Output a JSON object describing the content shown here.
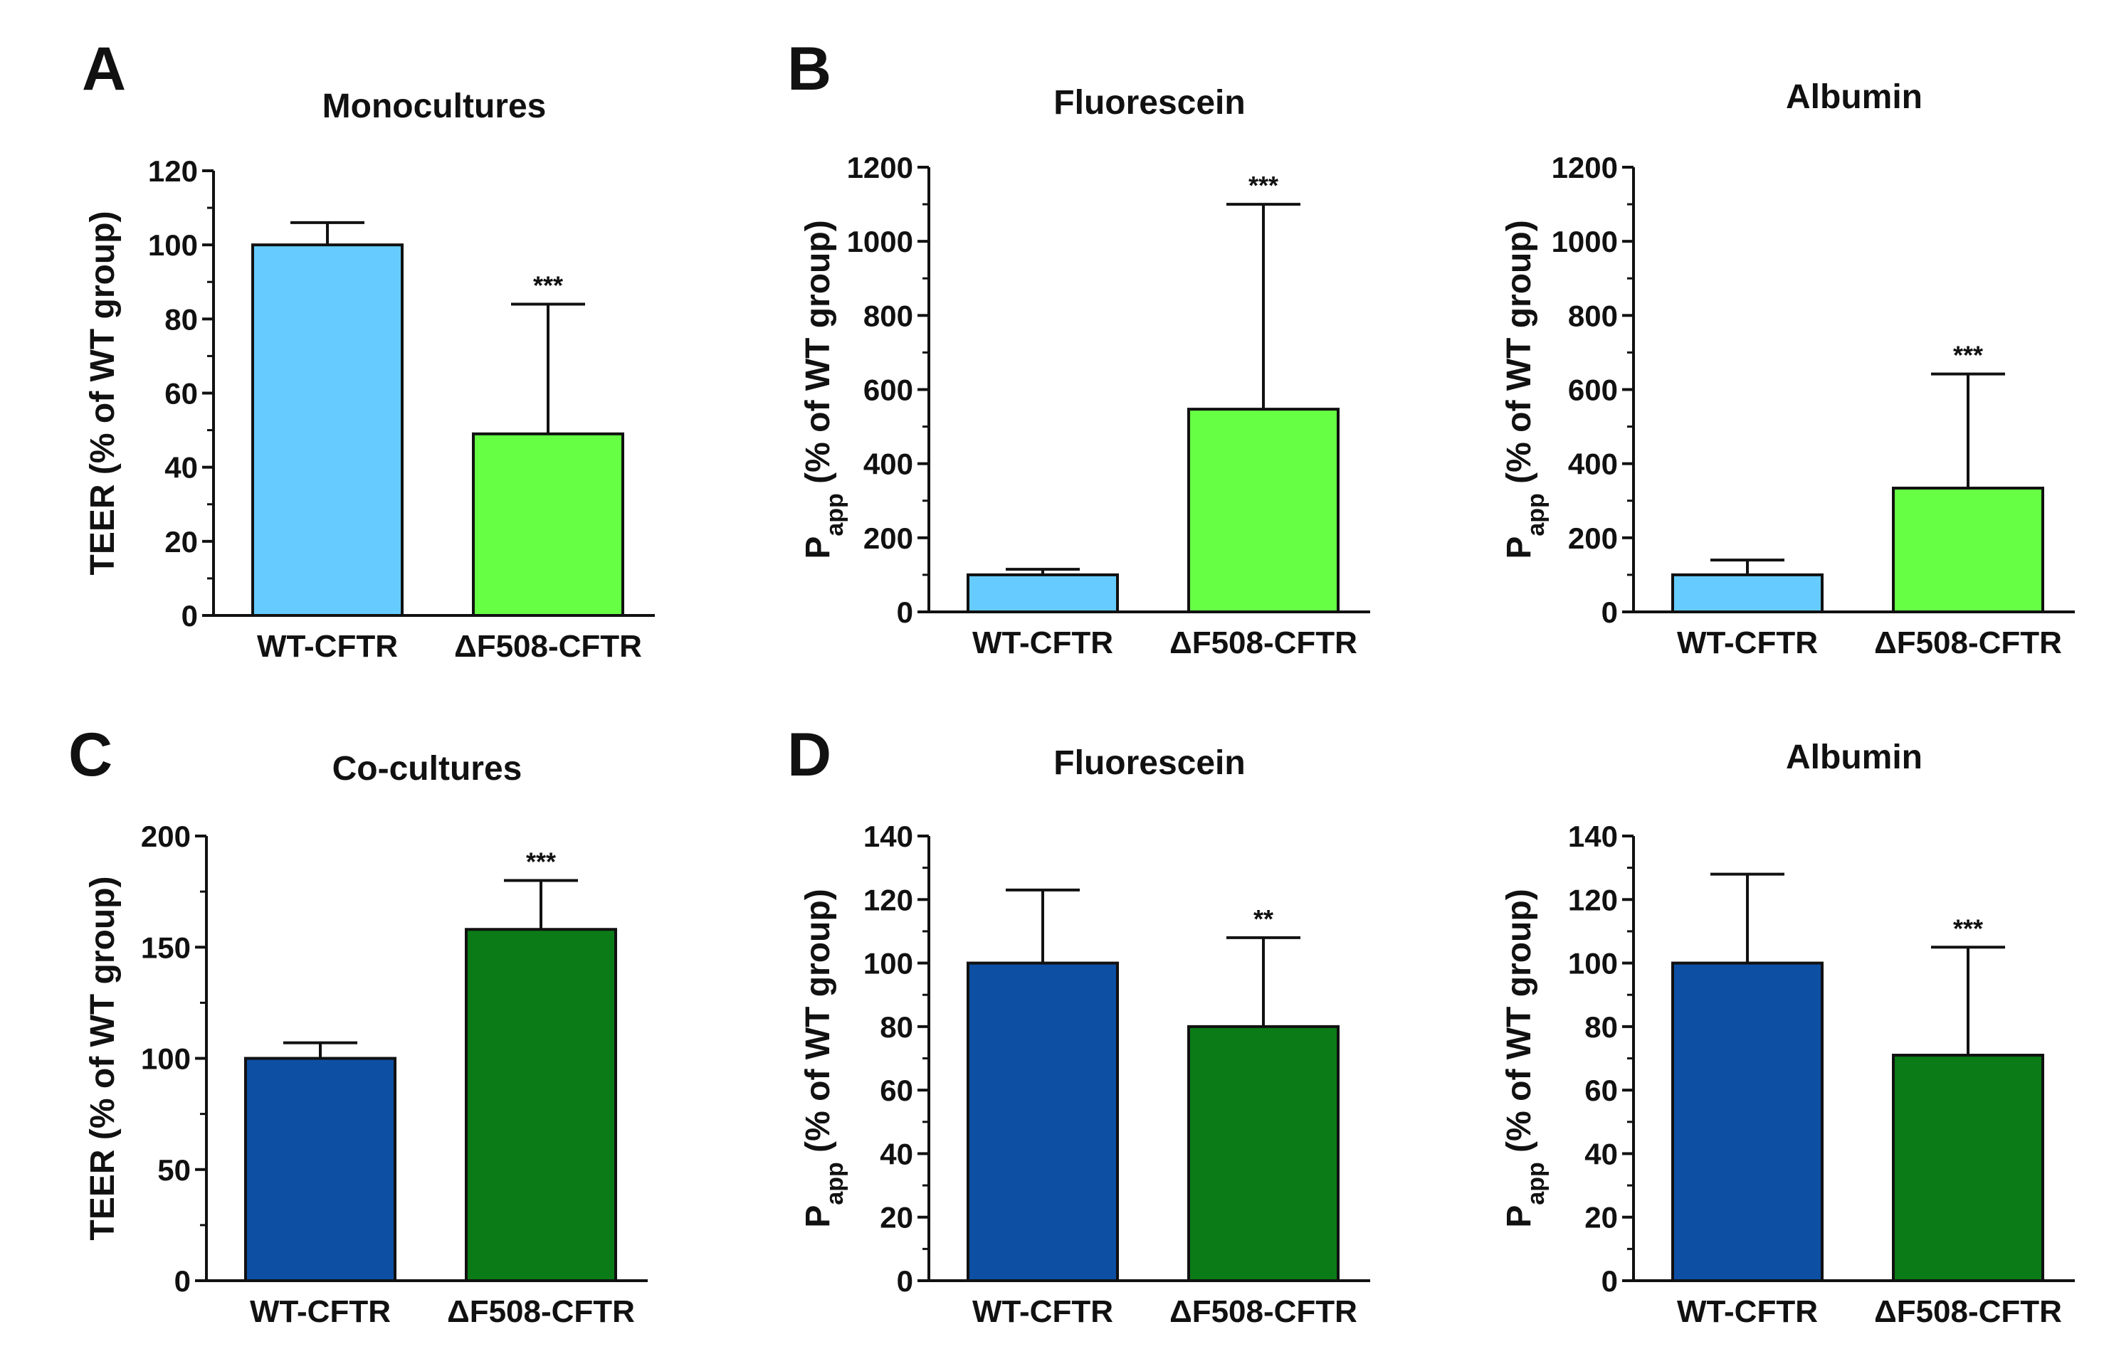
{
  "panel_letters": {
    "A": "A",
    "B": "B",
    "C": "C",
    "D": "D"
  },
  "colors": {
    "wt_light": "#66ccff",
    "df_light": "#66ff44",
    "wt_dark": "#0d4fa3",
    "df_dark": "#0b7b17",
    "axis": "#111111"
  },
  "chart_data": [
    {
      "id": "monocultures-teer",
      "type": "bar",
      "title": "Monocultures",
      "ylabel": "TEER (% of WT group)",
      "categories": [
        "WT-CFTR",
        "ΔF508-CFTR"
      ],
      "values": [
        100,
        49
      ],
      "error_upper": [
        106,
        84
      ],
      "significance": [
        "",
        "***"
      ],
      "ylim": [
        0,
        120
      ],
      "yticks": [
        "0",
        "20",
        "40",
        "60",
        "80",
        "100",
        "120"
      ],
      "palette": "light"
    },
    {
      "id": "fluorescein-mono",
      "type": "bar",
      "title": "Fluorescein",
      "ylabel_main": "P",
      "ylabel_sub": "app",
      "ylabel_rest": " (% of WT group)",
      "categories": [
        "WT-CFTR",
        "ΔF508-CFTR"
      ],
      "values": [
        100,
        547
      ],
      "error_upper": [
        115,
        1100
      ],
      "significance": [
        "",
        "***"
      ],
      "ylim": [
        0,
        1200
      ],
      "yticks": [
        "0",
        "200",
        "400",
        "600",
        "800",
        "1000",
        "1200"
      ],
      "palette": "light"
    },
    {
      "id": "albumin-mono",
      "type": "bar",
      "title": "Albumin",
      "ylabel_main": "P",
      "ylabel_sub": "app",
      "ylabel_rest": " (% of WT group)",
      "categories": [
        "WT-CFTR",
        "ΔF508-CFTR"
      ],
      "values": [
        100,
        334
      ],
      "error_upper": [
        140,
        642
      ],
      "significance": [
        "",
        "***"
      ],
      "ylim": [
        0,
        1200
      ],
      "yticks": [
        "0",
        "200",
        "400",
        "600",
        "800",
        "1000",
        "1200"
      ],
      "palette": "light"
    },
    {
      "id": "cocultures-teer",
      "type": "bar",
      "title": "Co-cultures",
      "ylabel": "TEER (% of WT group)",
      "categories": [
        "WT-CFTR",
        "ΔF508-CFTR"
      ],
      "values": [
        100,
        158
      ],
      "error_upper": [
        107,
        180
      ],
      "significance": [
        "",
        "***"
      ],
      "ylim": [
        0,
        200
      ],
      "yticks": [
        "0",
        "50",
        "100",
        "150",
        "200"
      ],
      "palette": "dark"
    },
    {
      "id": "fluorescein-co",
      "type": "bar",
      "title": "Fluorescein",
      "ylabel_main": "P",
      "ylabel_sub": "app",
      "ylabel_rest": " (% of WT group)",
      "categories": [
        "WT-CFTR",
        "ΔF508-CFTR"
      ],
      "values": [
        100,
        80
      ],
      "error_upper": [
        123,
        108
      ],
      "significance": [
        "",
        "**"
      ],
      "ylim": [
        0,
        140
      ],
      "yticks": [
        "0",
        "20",
        "40",
        "60",
        "80",
        "100",
        "120",
        "140"
      ],
      "palette": "dark"
    },
    {
      "id": "albumin-co",
      "type": "bar",
      "title": "Albumin",
      "ylabel_main": "P",
      "ylabel_sub": "app",
      "ylabel_rest": " (% of WT group)",
      "categories": [
        "WT-CFTR",
        "ΔF508-CFTR"
      ],
      "values": [
        100,
        71
      ],
      "error_upper": [
        128,
        105
      ],
      "significance": [
        "",
        "***"
      ],
      "ylim": [
        0,
        140
      ],
      "yticks": [
        "0",
        "20",
        "40",
        "60",
        "80",
        "100",
        "120",
        "140"
      ],
      "palette": "dark"
    }
  ]
}
